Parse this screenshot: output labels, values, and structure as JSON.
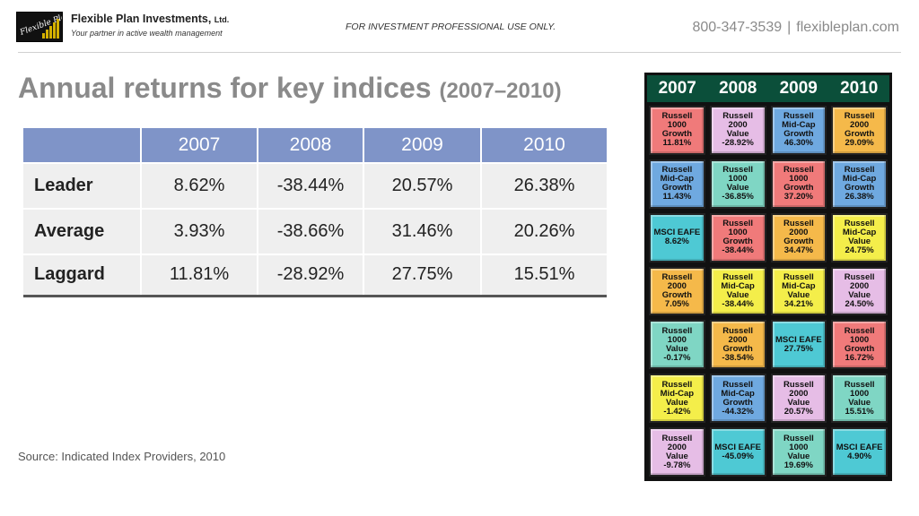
{
  "header": {
    "logo_text": "Flexible Plan",
    "company_name": "Flexible Plan Investments,",
    "company_suffix": "Ltd.",
    "tagline": "Your partner in active wealth management",
    "disclaimer": "FOR INVESTMENT PROFESSIONAL USE ONLY.",
    "phone": "800-347-3539",
    "separator": "|",
    "website": "flexibleplan.com"
  },
  "title": {
    "main": "Annual returns for key indices",
    "sub": "(2007–2010)"
  },
  "table": {
    "columns": [
      "",
      "2007",
      "2008",
      "2009",
      "2010"
    ],
    "rows": [
      {
        "label": "Leader",
        "values": [
          "8.62%",
          "-38.44%",
          "20.57%",
          "26.38%"
        ]
      },
      {
        "label": "Average",
        "values": [
          "3.93%",
          "-38.66%",
          "31.46%",
          "20.26%"
        ]
      },
      {
        "label": "Laggard",
        "values": [
          "11.81%",
          "-28.92%",
          "27.75%",
          "15.51%"
        ]
      }
    ]
  },
  "source": "Source: Indicated Index Providers, 2010",
  "quilt": {
    "years": [
      "2007",
      "2008",
      "2009",
      "2010"
    ],
    "cells": [
      {
        "text": "Russell 1000\nGrowth\n11.81%",
        "color": "#f07a7a"
      },
      {
        "text": "Russell 2000\nValue\n-28.92%",
        "color": "#e6bde6"
      },
      {
        "text": "Russell\nMid-Cap\nGrowth\n46.30%",
        "color": "#6fa9e0"
      },
      {
        "text": "Russell 2000\nGrowth\n29.09%",
        "color": "#f5b94a"
      },
      {
        "text": "Russell\nMid-Cap\nGrowth\n11.43%",
        "color": "#6fa9e0"
      },
      {
        "text": "Russell 1000\nValue\n-36.85%",
        "color": "#7fd6c4"
      },
      {
        "text": "Russell 1000\nGrowth\n37.20%",
        "color": "#f07a7a"
      },
      {
        "text": "Russell\nMid-Cap\nGrowth\n26.38%",
        "color": "#6fa9e0"
      },
      {
        "text": "MSCI EAFE\n8.62%",
        "color": "#4ec9d4"
      },
      {
        "text": "Russell 1000\nGrowth\n-38.44%",
        "color": "#f07a7a"
      },
      {
        "text": "Russell 2000\nGrowth\n34.47%",
        "color": "#f5b94a"
      },
      {
        "text": "Russell\nMid-Cap\nValue\n24.75%",
        "color": "#f4ee4a"
      },
      {
        "text": "Russell 2000\nGrowth\n7.05%",
        "color": "#f5b94a"
      },
      {
        "text": "Russell\nMid-Cap\nValue\n-38.44%",
        "color": "#f4ee4a"
      },
      {
        "text": "Russell\nMid-Cap\nValue\n34.21%",
        "color": "#f4ee4a"
      },
      {
        "text": "Russell 2000\nValue\n24.50%",
        "color": "#e6bde6"
      },
      {
        "text": "Russell 1000\nValue\n-0.17%",
        "color": "#7fd6c4"
      },
      {
        "text": "Russell 2000\nGrowth\n-38.54%",
        "color": "#f5b94a"
      },
      {
        "text": "MSCI EAFE\n27.75%",
        "color": "#4ec9d4"
      },
      {
        "text": "Russell 1000\nGrowth\n16.72%",
        "color": "#f07a7a"
      },
      {
        "text": "Russell\nMid-Cap\nValue\n-1.42%",
        "color": "#f4ee4a"
      },
      {
        "text": "Russell\nMid-Cap\nGrowth\n-44.32%",
        "color": "#6fa9e0"
      },
      {
        "text": "Russell 2000\nValue\n20.57%",
        "color": "#e6bde6"
      },
      {
        "text": "Russell 1000\nValue\n15.51%",
        "color": "#7fd6c4"
      },
      {
        "text": "Russell 2000\nValue\n-9.78%",
        "color": "#e6bde6"
      },
      {
        "text": "MSCI EAFE\n-45.09%",
        "color": "#4ec9d4"
      },
      {
        "text": "Russell 1000\nValue\n19.69%",
        "color": "#7fd6c4"
      },
      {
        "text": "MSCI EAFE\n4.90%",
        "color": "#4ec9d4"
      }
    ]
  }
}
